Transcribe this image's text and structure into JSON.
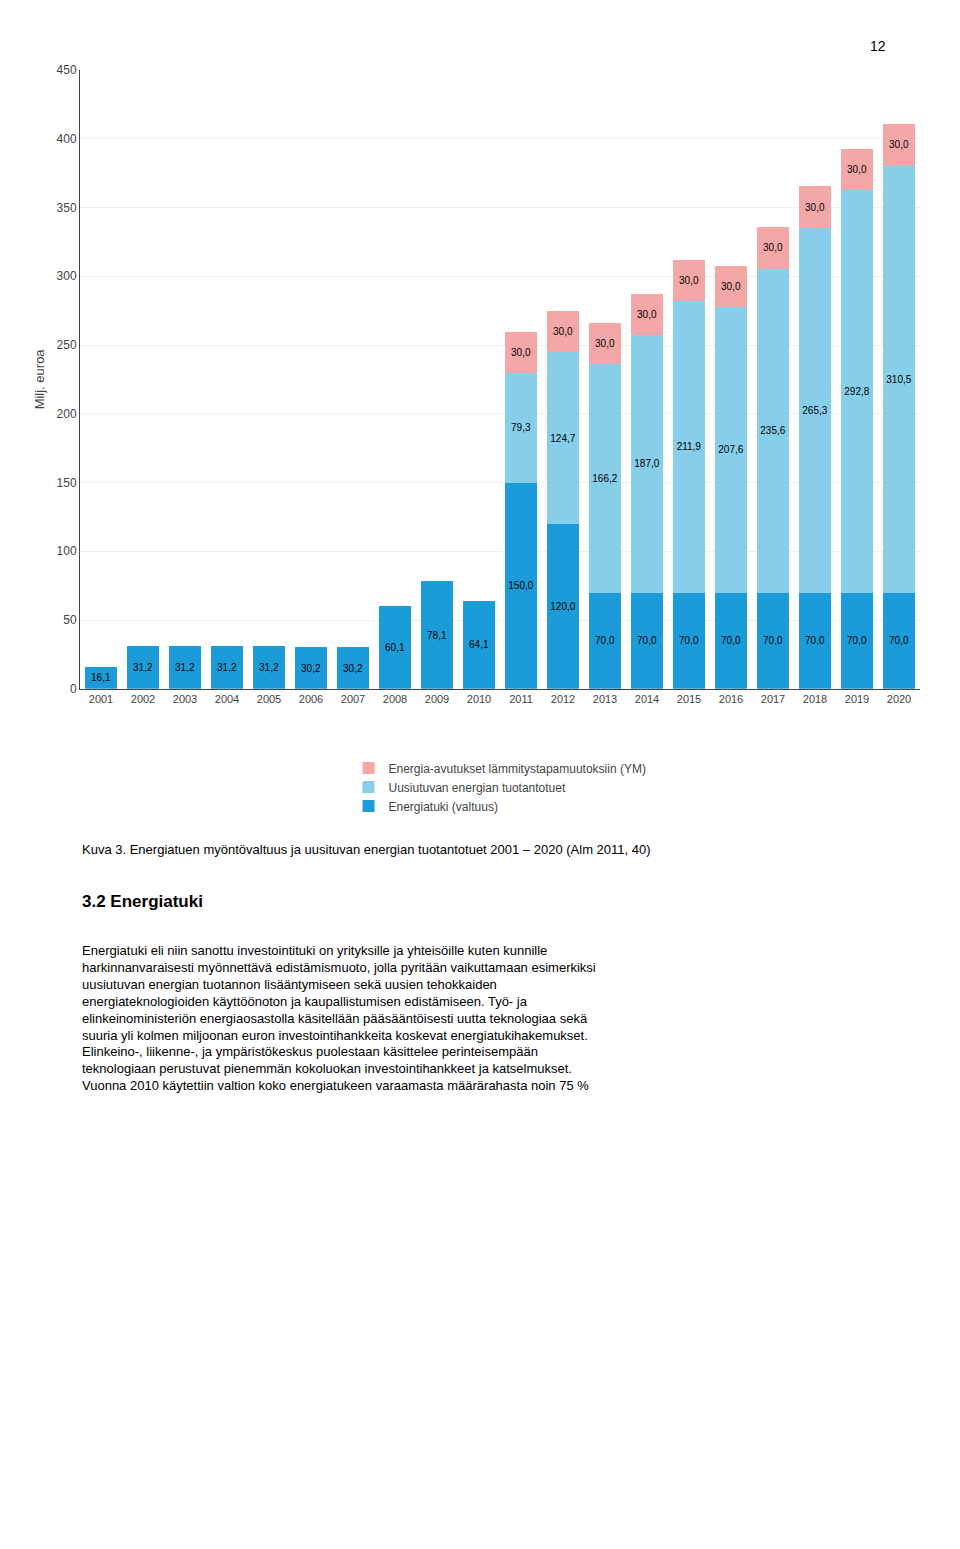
{
  "chart_data": {
    "type": "bar",
    "stacked": true,
    "data_labels": true,
    "grid": true,
    "legend": "bottom",
    "ylabel": "Milj. euroa",
    "categories": [
      "2001",
      "2002",
      "2003",
      "2004",
      "2005",
      "2006",
      "2007",
      "2008",
      "2009",
      "2010",
      "2011",
      "2012",
      "2013",
      "2014",
      "2015",
      "2016",
      "2017",
      "2018",
      "2019",
      "2020"
    ],
    "series": [
      {
        "name": "Energiatuki (valtuus)",
        "color": "#1B9CD9",
        "values": [
          16.1,
          31.2,
          31.2,
          31.2,
          31.2,
          30.2,
          30.2,
          60.1,
          78.1,
          64.1,
          150.0,
          120.0,
          70.0,
          70.0,
          70.0,
          70.0,
          70.0,
          70.0,
          70.0,
          70.0
        ],
        "value_labels": [
          "16,1",
          "31,2",
          "31,2",
          "31,2",
          "31,2",
          "30,2",
          "30,2",
          "60,1",
          "78,1",
          "64,1",
          "150,0",
          "120,0",
          "70,0",
          "70,0",
          "70,0",
          "70,0",
          "70,0",
          "70,0",
          "70,0",
          "70,0"
        ]
      },
      {
        "name": "Uusiutuvan energian tuotantotuet",
        "color": "#87CEEB",
        "values": [
          0,
          0,
          0,
          0,
          0,
          0,
          0,
          0,
          0,
          0,
          79.3,
          124.7,
          166.2,
          187.0,
          211.9,
          207.6,
          235.6,
          265.3,
          292.8,
          310.5
        ],
        "value_labels": [
          null,
          null,
          null,
          null,
          null,
          null,
          null,
          null,
          null,
          null,
          "79,3",
          "124,7",
          "166,2",
          "187,0",
          "211,9",
          "207,6",
          "235,6",
          "265,3",
          "292,8",
          "310,5"
        ]
      },
      {
        "name": "Energia-avutukset lämmitystapamuutoksiin (YM)",
        "color": "#F4A7A7",
        "values": [
          0,
          0,
          0,
          0,
          0,
          0,
          0,
          0,
          0,
          0,
          30.0,
          30.0,
          30.0,
          30.0,
          30.0,
          30.0,
          30.0,
          30.0,
          30.0,
          30.0
        ],
        "value_labels": [
          null,
          null,
          null,
          null,
          null,
          null,
          null,
          null,
          null,
          null,
          "30,0",
          "30,0",
          "30,0",
          "30,0",
          "30,0",
          "30,0",
          "30,0",
          "30,0",
          "30,0",
          "30,0"
        ]
      }
    ],
    "ylim": [
      0,
      450
    ],
    "yticks": [
      0,
      50,
      100,
      150,
      200,
      250,
      300,
      350,
      400,
      450
    ],
    "page_number": "12",
    "caption": "Kuva 3. Energiatuen myöntövaltuus ja uusituvan energian tuotantotuet 2001 – 2020 (Alm 2011, 40)",
    "heading": "3.2 Energiatuki",
    "body": [
      "Energiatuki eli niin sanottu investointituki on yrityksille ja yhteisöille kuten kunnille",
      "harkinnanvaraisesti myönnettävä edistämismuoto, jolla pyritään vaikuttamaan esimerkiksi",
      "uusiutuvan energian tuotannon lisääntymiseen sekä uusien tehokkaiden",
      "energiateknologioiden käyttöönoton ja kaupallistumisen edistämiseen. Työ- ja",
      "elinkeinoministeriön energiaosastolla käsitellään pääsääntöisesti uutta teknologiaa sekä",
      "suuria yli kolmen miljoonan euron investointihankkeita koskevat energiatukihakemukset.",
      "Elinkeino-, liikenne-, ja ympäristökeskus puolestaan käsittelee perinteisempään",
      "teknologiaan perustuvat pienemmän kokoluokan investointihankkeet ja katselmukset.",
      "Vuonna 2010 käytettiin valtion koko energiatukeen varaamasta määrärahasta noin 75 %"
    ]
  }
}
